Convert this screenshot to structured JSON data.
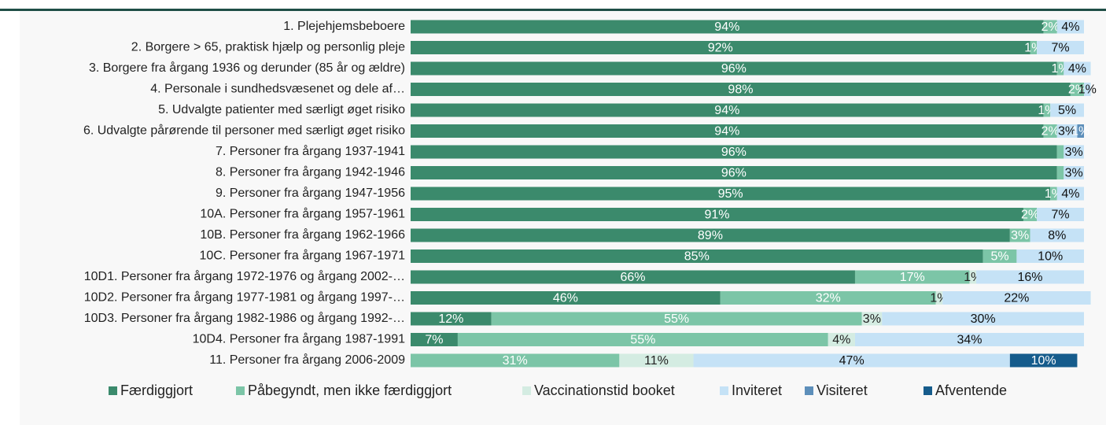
{
  "chart_data": {
    "type": "stacked-bar-horizontal",
    "categories": [
      "1. Plejehjemsbeboere",
      "2. Borgere > 65, praktisk hjælp og personlig pleje",
      "3. Borgere fra årgang 1936 og derunder (85 år og ældre)",
      "4. Personale i sundhedsvæsenet og dele af…",
      "5. Udvalgte patienter med særligt øget risiko",
      "6. Udvalgte pårørende til personer med særligt øget risiko",
      "7. Personer fra årgang 1937-1941",
      "8. Personer fra årgang 1942-1946",
      "9. Personer fra årgang 1947-1956",
      "10A. Personer fra årgang 1957-1961",
      "10B. Personer fra årgang 1962-1966",
      "10C. Personer fra årgang 1967-1971",
      "10D1. Personer fra årgang 1972-1976 og årgang 2002-…",
      "10D2. Personer fra årgang 1977-1981 og årgang 1997-…",
      "10D3. Personer fra årgang 1982-1986 og årgang 1992-…",
      "10D4. Personer fra årgang 1987-1991",
      "11. Personer fra årgang 2006-2009"
    ],
    "xlim": [
      0,
      100
    ],
    "legend": "bottom",
    "series": [
      {
        "name": "Færdiggjort",
        "color": "#3b8a6c",
        "label_color": "#ffffff",
        "values": [
          94,
          92,
          96,
          98,
          94,
          94,
          96,
          96,
          95,
          91,
          89,
          85,
          66,
          46,
          12,
          7,
          0
        ],
        "value_labels": [
          "94%",
          "92%",
          "96%",
          "98%",
          "94%",
          "94%",
          "96%",
          "96%",
          "95%",
          "91%",
          "89%",
          "85%",
          "66%",
          "46%",
          "12%",
          "7%",
          null
        ]
      },
      {
        "name": "Påbegyndt, men ikke færdiggjort",
        "color": "#7cc5a7",
        "label_color": "#ffffff",
        "values": [
          2,
          1,
          1,
          2,
          1,
          2,
          1,
          1,
          1,
          2,
          3,
          5,
          17,
          32,
          55,
          55,
          31
        ],
        "value_labels": [
          "2%",
          "1%",
          "1%",
          "2%",
          "1%",
          "2%",
          null,
          null,
          "1%",
          "2%",
          "3%",
          "5%",
          "17%",
          "32%",
          "55%",
          "55%",
          "31%"
        ]
      },
      {
        "name": "Vaccinationstid booket",
        "color": "#d4ece2",
        "label_color": "#222222",
        "values": [
          0,
          0,
          0,
          0,
          0,
          0,
          0,
          0,
          0,
          0,
          0,
          0,
          1,
          1,
          3,
          4,
          11
        ],
        "value_labels": [
          null,
          null,
          null,
          null,
          null,
          null,
          null,
          null,
          null,
          null,
          null,
          null,
          "1%",
          "1%",
          "3%",
          "4%",
          "11%"
        ]
      },
      {
        "name": "Inviteret",
        "color": "#c5e2f6",
        "label_color": "#111111",
        "values": [
          4,
          7,
          4,
          1,
          5,
          3,
          3,
          3,
          4,
          7,
          8,
          10,
          16,
          22,
          30,
          34,
          47
        ],
        "value_labels": [
          "4%",
          "7%",
          "4%",
          "1%",
          "5%",
          "3%",
          "3%",
          "3%",
          "4%",
          "7%",
          "8%",
          "10%",
          "16%",
          "22%",
          "30%",
          "34%",
          "47%"
        ]
      },
      {
        "name": "Visiteret",
        "color": "#5d8fba",
        "label_color": "#ffffff",
        "values": [
          0,
          0,
          0,
          0,
          0,
          1,
          0,
          0,
          0,
          0,
          0,
          0,
          0,
          0,
          0,
          0,
          0
        ],
        "value_labels": [
          null,
          null,
          null,
          null,
          null,
          "1%",
          null,
          null,
          null,
          null,
          null,
          null,
          null,
          null,
          null,
          null,
          null
        ]
      },
      {
        "name": "Afventende",
        "color": "#165c8c",
        "label_color": "#ffffff",
        "values": [
          0,
          0,
          0,
          0,
          0,
          0,
          0,
          0,
          0,
          0,
          0,
          0,
          0,
          0,
          0,
          0,
          10
        ],
        "value_labels": [
          null,
          null,
          null,
          null,
          null,
          null,
          null,
          null,
          null,
          null,
          null,
          null,
          null,
          null,
          null,
          null,
          "10%"
        ]
      }
    ]
  }
}
